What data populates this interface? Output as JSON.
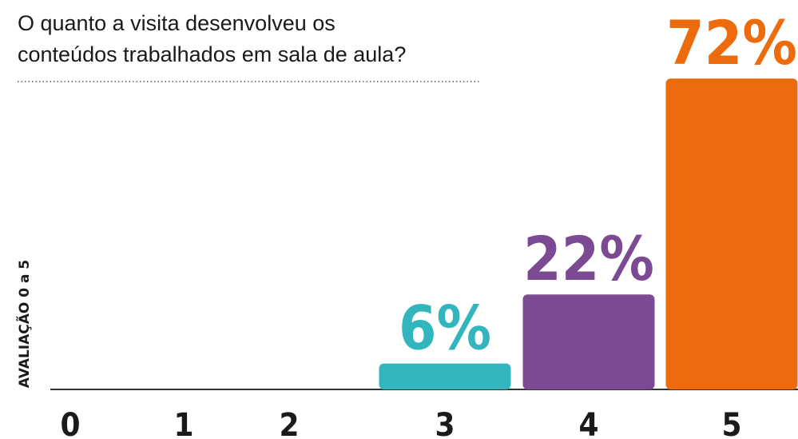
{
  "chart_data": {
    "type": "bar",
    "title": [
      "O quanto a visita desenvolveu os",
      "conteúdos trabalhados em sala de aula?"
    ],
    "y_axis_label": "AVALIAÇÃO 0 a 5",
    "categories": [
      "0",
      "1",
      "2",
      "3",
      "4",
      "5"
    ],
    "values": [
      0,
      0,
      0,
      6,
      22,
      72
    ],
    "value_labels": [
      null,
      null,
      null,
      "6%",
      "22%",
      "72%"
    ],
    "colors": [
      "#222222",
      "#222222",
      "#222222",
      "#33b5bd",
      "#7b4a93",
      "#ec6b0c"
    ]
  }
}
